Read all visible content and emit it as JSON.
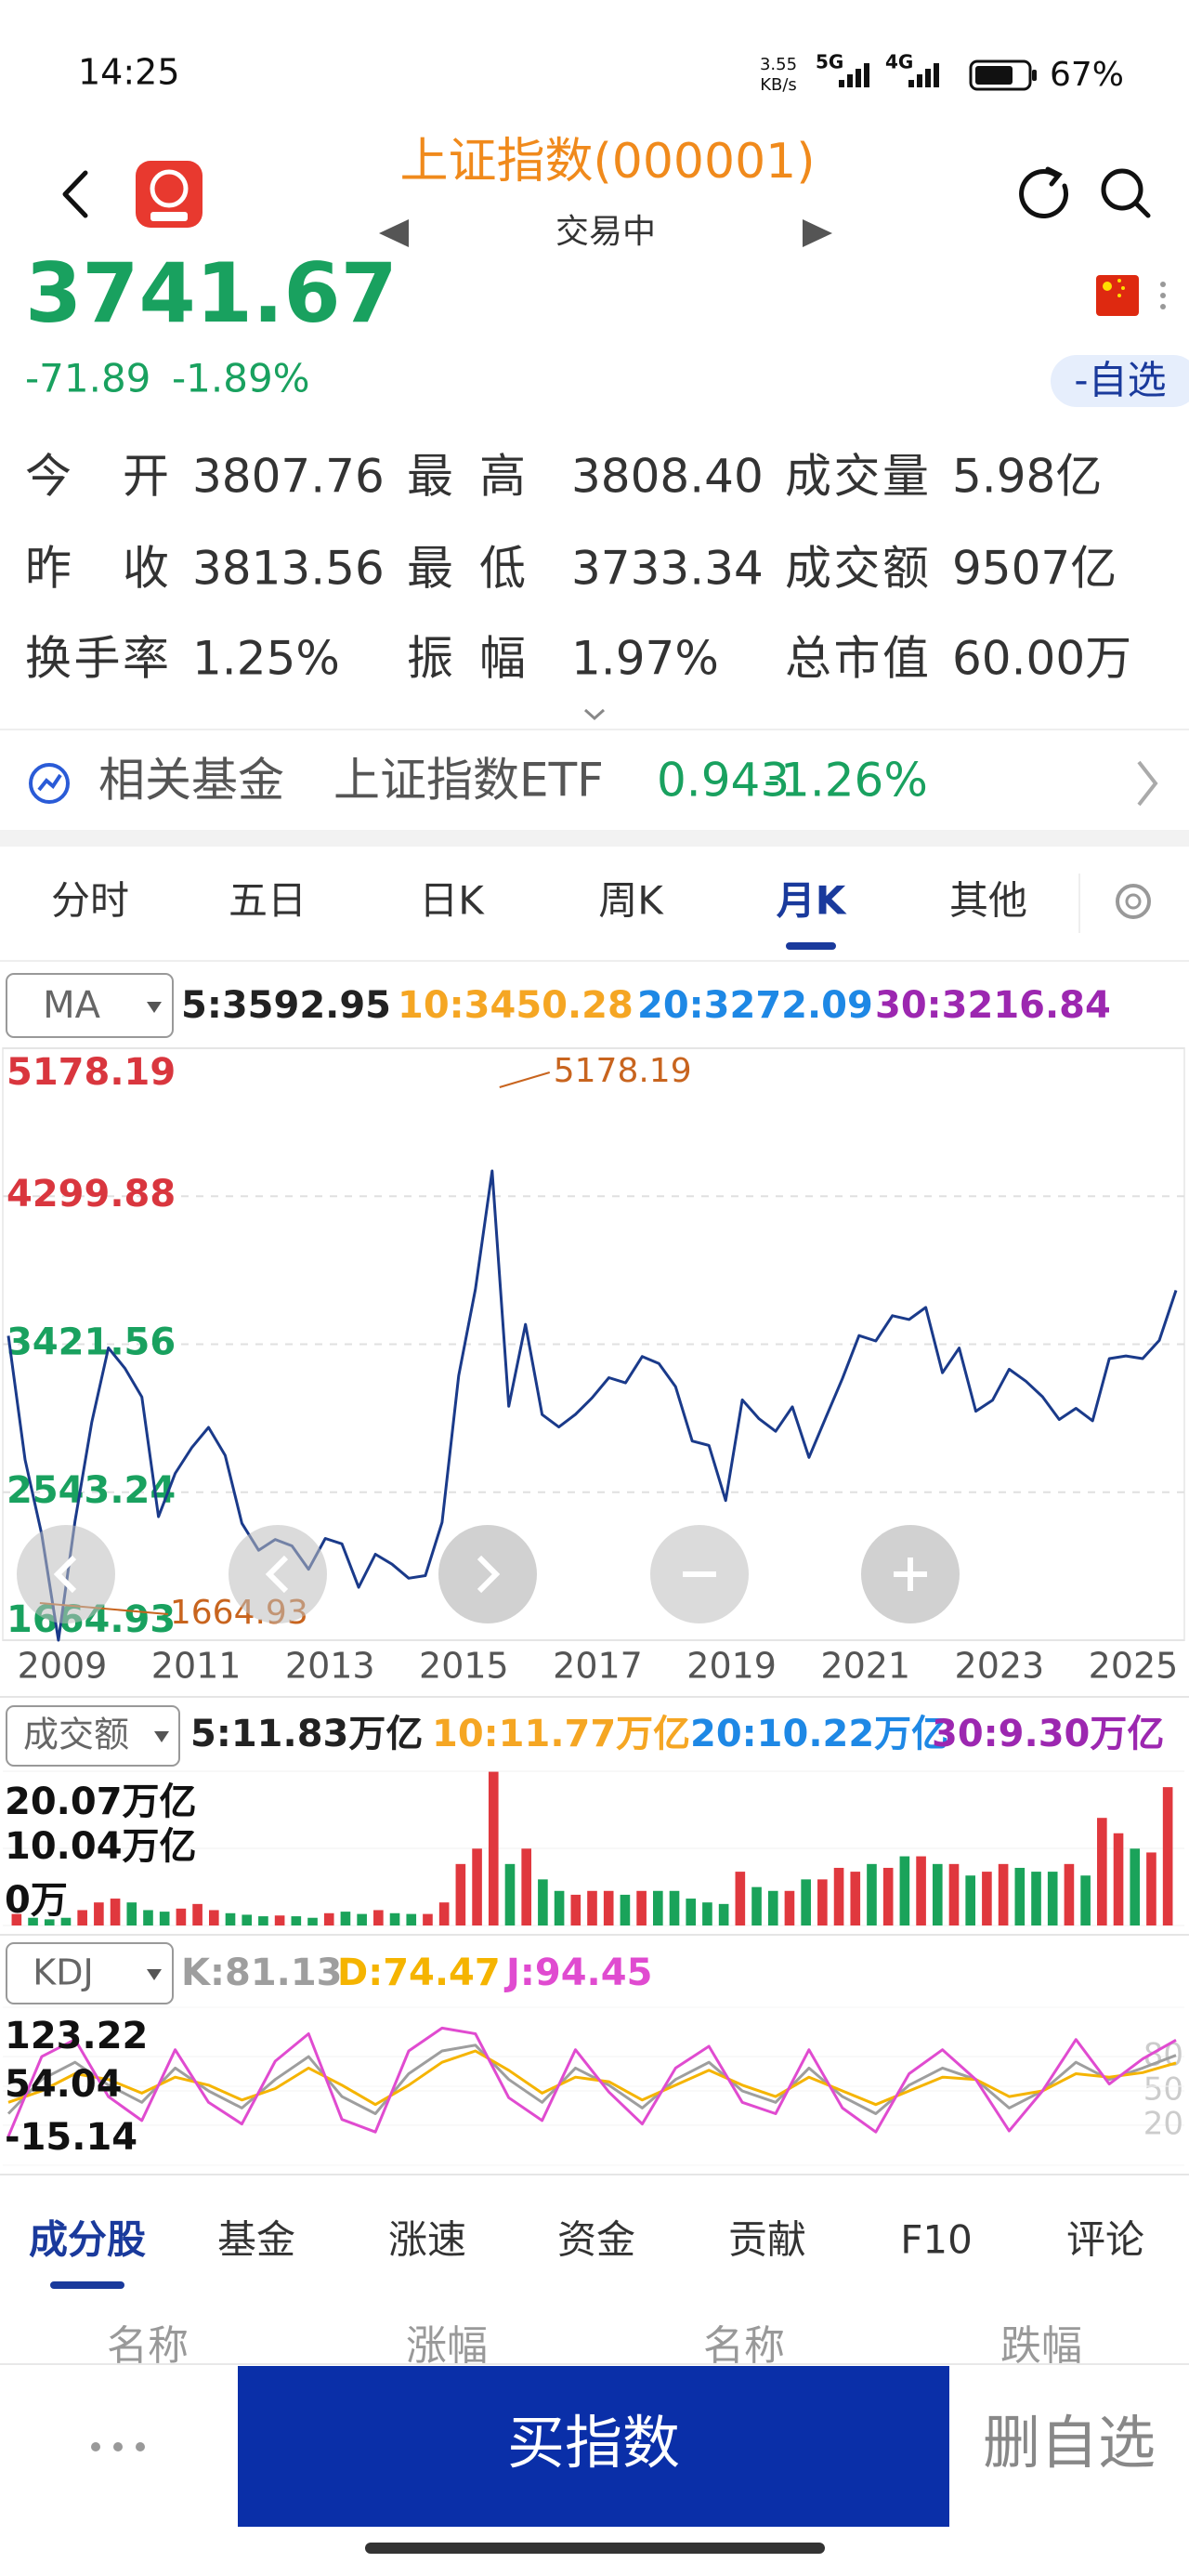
{
  "status_bar": {
    "time": "14:25",
    "net_speed": "3.55",
    "net_unit": "KB/s",
    "network_1": "5G",
    "network_2": "4G",
    "battery": "67%"
  },
  "header": {
    "title": "上证指数(000001)",
    "status": "交易中"
  },
  "quote": {
    "price": "3741.67",
    "change": "-71.89",
    "change_pct": "-1.89%",
    "watch_button": "-自选"
  },
  "stats": [
    [
      {
        "label": "今 开",
        "value": "3807.76"
      },
      {
        "label": "最 高",
        "value": "3808.40"
      },
      {
        "label": "成交量",
        "value": "5.98亿"
      }
    ],
    [
      {
        "label": "昨 收",
        "value": "3813.56"
      },
      {
        "label": "最 低",
        "value": "3733.34"
      },
      {
        "label": "成交额",
        "value": "9507亿"
      }
    ],
    [
      {
        "label": "换手率",
        "value": "1.25%"
      },
      {
        "label": "振 幅",
        "value": "1.97%"
      },
      {
        "label": "总市值",
        "value": "60.00万"
      }
    ]
  ],
  "related_fund": {
    "label": "相关基金",
    "name": "上证指数ETF",
    "price": "0.943",
    "change": "-1.26%"
  },
  "chart_tabs": [
    "分时",
    "五日",
    "日K",
    "周K",
    "月K",
    "其他"
  ],
  "active_chart_tab": "月K",
  "charts": {
    "price": {
      "type": "line",
      "indicator": "MA",
      "ma_labels": [
        {
          "text": "5:3592.95",
          "color": "#222222"
        },
        {
          "text": "10:3450.28",
          "color": "#f5a623"
        },
        {
          "text": "20:3272.09",
          "color": "#1e88e5"
        },
        {
          "text": "30:3216.84",
          "color": "#9c27b0"
        }
      ],
      "color": "#1a3a8a",
      "ylim": [
        1664.93,
        5178.19
      ],
      "yticks": [
        5178.19,
        4299.88,
        3421.56,
        2543.24,
        1664.93
      ],
      "ytick_colors": [
        "#d9363e",
        "#d9363e",
        "#19a15f",
        "#19a15f",
        "#19a15f"
      ],
      "high": 5178.19,
      "low": 1664.93,
      "x_labels": [
        "2009",
        "2011",
        "2013",
        "2015",
        "2017",
        "2019",
        "2021",
        "2023",
        "2025"
      ],
      "values": [
        3472,
        2736,
        2293,
        1664.93,
        2373,
        2959,
        3400,
        3277,
        3109,
        2398,
        2655,
        2808,
        2928,
        2762,
        2359,
        2199,
        2263,
        2225,
        2086,
        2269,
        2237,
        1979,
        2175,
        2116,
        2033,
        2048,
        2364,
        3235,
        3748,
        4450,
        3053,
        3539,
        3004,
        2930,
        3005,
        3104,
        3223,
        3192,
        3349,
        3307,
        3169,
        2847,
        2821,
        2494,
        3091,
        2979,
        2905,
        3050,
        2750,
        2985,
        3218,
        3473,
        3441,
        3591,
        3568,
        3640,
        3252,
        3399,
        3024,
        3089,
        3273,
        3202,
        3110,
        2975,
        3041,
        2967,
        3336,
        3352,
        3336,
        3444,
        3741.67
      ]
    },
    "volume": {
      "type": "bar",
      "indicator": "成交额",
      "ma_labels": [
        {
          "text": "5:11.83万亿",
          "color": "#222222"
        },
        {
          "text": "10:11.77万亿",
          "color": "#f5a623"
        },
        {
          "text": "20:10.22万亿",
          "color": "#1e88e5"
        },
        {
          "text": "30:9.30万亿",
          "color": "#9c27b0"
        }
      ],
      "up_color": "#e0383e",
      "down_color": "#1aa35a",
      "ylim": [
        0,
        20.07
      ],
      "yticks": [
        {
          "value": 20.07,
          "label": "20.07万亿"
        },
        {
          "value": 10.04,
          "label": "10.04万亿"
        },
        {
          "value": 0,
          "label": "0万"
        }
      ],
      "values": [
        1.5,
        1.0,
        0.8,
        1.0,
        2.0,
        3.0,
        3.5,
        3.0,
        2.0,
        1.8,
        2.2,
        2.8,
        2.0,
        1.6,
        1.4,
        1.2,
        1.3,
        1.2,
        1.0,
        1.6,
        1.8,
        1.5,
        2.0,
        1.6,
        1.5,
        1.5,
        3.0,
        8.0,
        10.0,
        20.0,
        8.0,
        10.0,
        6.0,
        4.5,
        4.0,
        4.5,
        4.5,
        4.0,
        4.5,
        4.5,
        4.5,
        3.5,
        3.0,
        2.8,
        7.0,
        5.0,
        4.5,
        4.5,
        6.0,
        6.0,
        7.5,
        7.0,
        8.0,
        7.5,
        9.0,
        9.0,
        8.0,
        8.0,
        6.5,
        7.0,
        8.0,
        7.5,
        7.0,
        7.0,
        8.0,
        6.5,
        14.0,
        12.0,
        10.0,
        9.5,
        18.0
      ]
    },
    "kdj": {
      "type": "line",
      "indicator": "KDJ",
      "ylim": [
        -15.14,
        123.22
      ],
      "yticks": [
        123.22,
        54.04,
        -15.14
      ],
      "levels": [
        80,
        50,
        20
      ],
      "series": [
        {
          "label": "K:81.13",
          "color": "#9e9e9e",
          "values": [
            30,
            60,
            75,
            55,
            40,
            70,
            50,
            35,
            60,
            80,
            45,
            30,
            65,
            85,
            90,
            60,
            40,
            70,
            55,
            35,
            60,
            75,
            50,
            40,
            70,
            45,
            30,
            55,
            70,
            60,
            35,
            50,
            75,
            60,
            70,
            81.13
          ]
        },
        {
          "label": "D:74.47",
          "color": "#f5b400",
          "values": [
            40,
            50,
            65,
            60,
            48,
            62,
            55,
            42,
            52,
            70,
            55,
            38,
            55,
            75,
            85,
            68,
            48,
            62,
            58,
            42,
            55,
            68,
            55,
            45,
            62,
            50,
            38,
            50,
            62,
            60,
            45,
            50,
            65,
            62,
            66,
            74.47
          ]
        },
        {
          "label": "J:94.45",
          "color": "#e04bd0",
          "values": [
            10,
            80,
            95,
            45,
            24,
            86,
            40,
            21,
            76,
            100,
            25,
            14,
            85,
            105,
            100,
            44,
            24,
            86,
            49,
            21,
            70,
            89,
            40,
            30,
            86,
            35,
            14,
            65,
            86,
            60,
            15,
            50,
            95,
            56,
            78,
            94.45
          ]
        }
      ]
    }
  },
  "bottom_tabs": [
    "成分股",
    "基金",
    "涨速",
    "资金",
    "贡献",
    "F10",
    "评论"
  ],
  "active_bottom_tab": "成分股",
  "table_header": [
    "名称",
    "涨幅",
    "名称",
    "跌幅"
  ],
  "actions": {
    "buy": "买指数",
    "remove_watch": "删自选"
  }
}
